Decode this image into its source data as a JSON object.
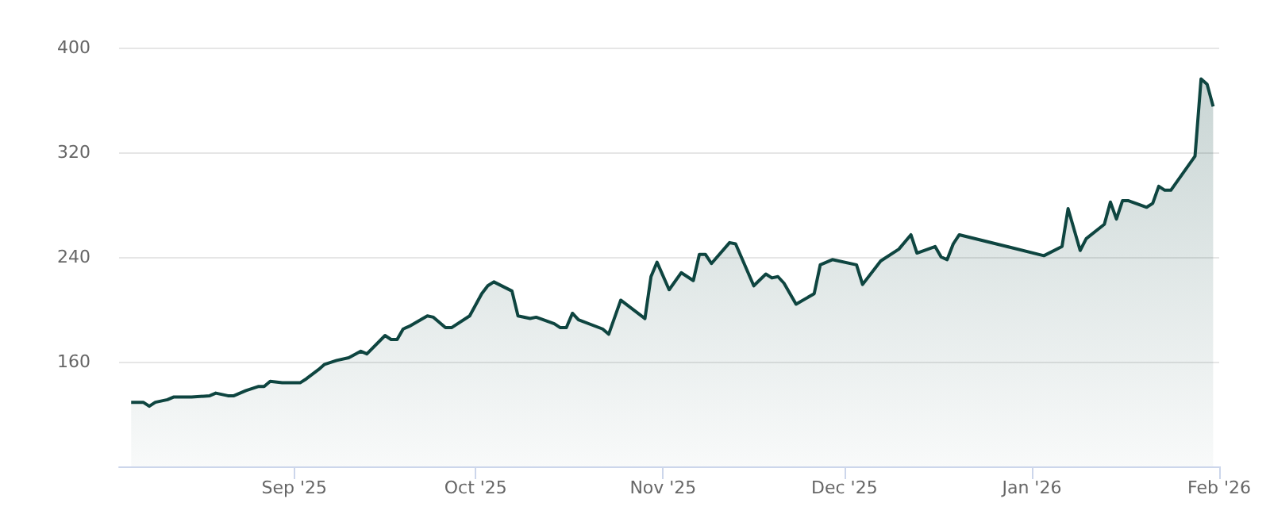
{
  "chart_data": {
    "type": "area",
    "x": [
      "2025-08-05",
      "2025-08-07",
      "2025-08-08",
      "2025-08-09",
      "2025-08-11",
      "2025-08-12",
      "2025-08-14",
      "2025-08-15",
      "2025-08-18",
      "2025-08-19",
      "2025-08-21",
      "2025-08-22",
      "2025-08-24",
      "2025-08-26",
      "2025-08-27",
      "2025-08-28",
      "2025-08-30",
      "2025-09-02",
      "2025-09-03",
      "2025-09-05",
      "2025-09-06",
      "2025-09-08",
      "2025-09-10",
      "2025-09-12",
      "2025-09-13",
      "2025-09-16",
      "2025-09-17",
      "2025-09-18",
      "2025-09-19",
      "2025-09-20",
      "2025-09-23",
      "2025-09-24",
      "2025-09-26",
      "2025-09-27",
      "2025-09-30",
      "2025-10-02",
      "2025-10-03",
      "2025-10-04",
      "2025-10-07",
      "2025-10-08",
      "2025-10-10",
      "2025-10-11",
      "2025-10-14",
      "2025-10-15",
      "2025-10-16",
      "2025-10-17",
      "2025-10-18",
      "2025-10-22",
      "2025-10-23",
      "2025-10-25",
      "2025-10-29",
      "2025-10-30",
      "2025-10-31",
      "2025-11-02",
      "2025-11-04",
      "2025-11-06",
      "2025-11-07",
      "2025-11-08",
      "2025-11-09",
      "2025-11-12",
      "2025-11-13",
      "2025-11-16",
      "2025-11-18",
      "2025-11-19",
      "2025-11-20",
      "2025-11-21",
      "2025-11-23",
      "2025-11-26",
      "2025-11-27",
      "2025-11-28",
      "2025-11-29",
      "2025-12-03",
      "2025-12-04",
      "2025-12-07",
      "2025-12-10",
      "2025-12-12",
      "2025-12-13",
      "2025-12-16",
      "2025-12-17",
      "2025-12-18",
      "2025-12-19",
      "2025-12-20",
      "2026-01-03",
      "2026-01-06",
      "2026-01-07",
      "2026-01-09",
      "2026-01-10",
      "2026-01-13",
      "2026-01-14",
      "2026-01-15",
      "2026-01-16",
      "2026-01-17",
      "2026-01-20",
      "2026-01-21",
      "2026-01-22",
      "2026-01-23",
      "2026-01-24",
      "2026-01-28",
      "2026-01-29",
      "2026-01-30",
      "2026-01-31"
    ],
    "series": [
      {
        "color": "#0e4540",
        "values": [
          129,
          129,
          126,
          129,
          131,
          133,
          133,
          133,
          134,
          136,
          134,
          134,
          138,
          141,
          141,
          145,
          144,
          144,
          147,
          154,
          158,
          161,
          163,
          168,
          166,
          180,
          177,
          177,
          185,
          187,
          195,
          194,
          186,
          186,
          195,
          212,
          218,
          221,
          214,
          195,
          193,
          194,
          189,
          186,
          186,
          197,
          192,
          185,
          181,
          207,
          193,
          225,
          236,
          215,
          228,
          222,
          242,
          242,
          235,
          251,
          250,
          218,
          227,
          224,
          225,
          220,
          204,
          212,
          234,
          236,
          238,
          234,
          219,
          237,
          246,
          257,
          243,
          248,
          240,
          238,
          250,
          257,
          241,
          248,
          277,
          245,
          254,
          265,
          282,
          269,
          283,
          283,
          278,
          281,
          294,
          291,
          291,
          317,
          376,
          372,
          355
        ]
      }
    ],
    "xlim": [
      "2025-08-03",
      "2026-02-01"
    ],
    "xticks": [
      {
        "value": "2025-09-01",
        "label": "Sep '25"
      },
      {
        "value": "2025-10-01",
        "label": "Oct '25"
      },
      {
        "value": "2025-11-01",
        "label": "Nov '25"
      },
      {
        "value": "2025-12-01",
        "label": "Dec '25"
      },
      {
        "value": "2026-01-01",
        "label": "Jan '26"
      },
      {
        "value": "2026-02-01",
        "label": "Feb '26"
      }
    ],
    "ylim": [
      80,
      400
    ],
    "yticks": [
      160,
      240,
      320,
      400
    ],
    "grid": "y"
  }
}
